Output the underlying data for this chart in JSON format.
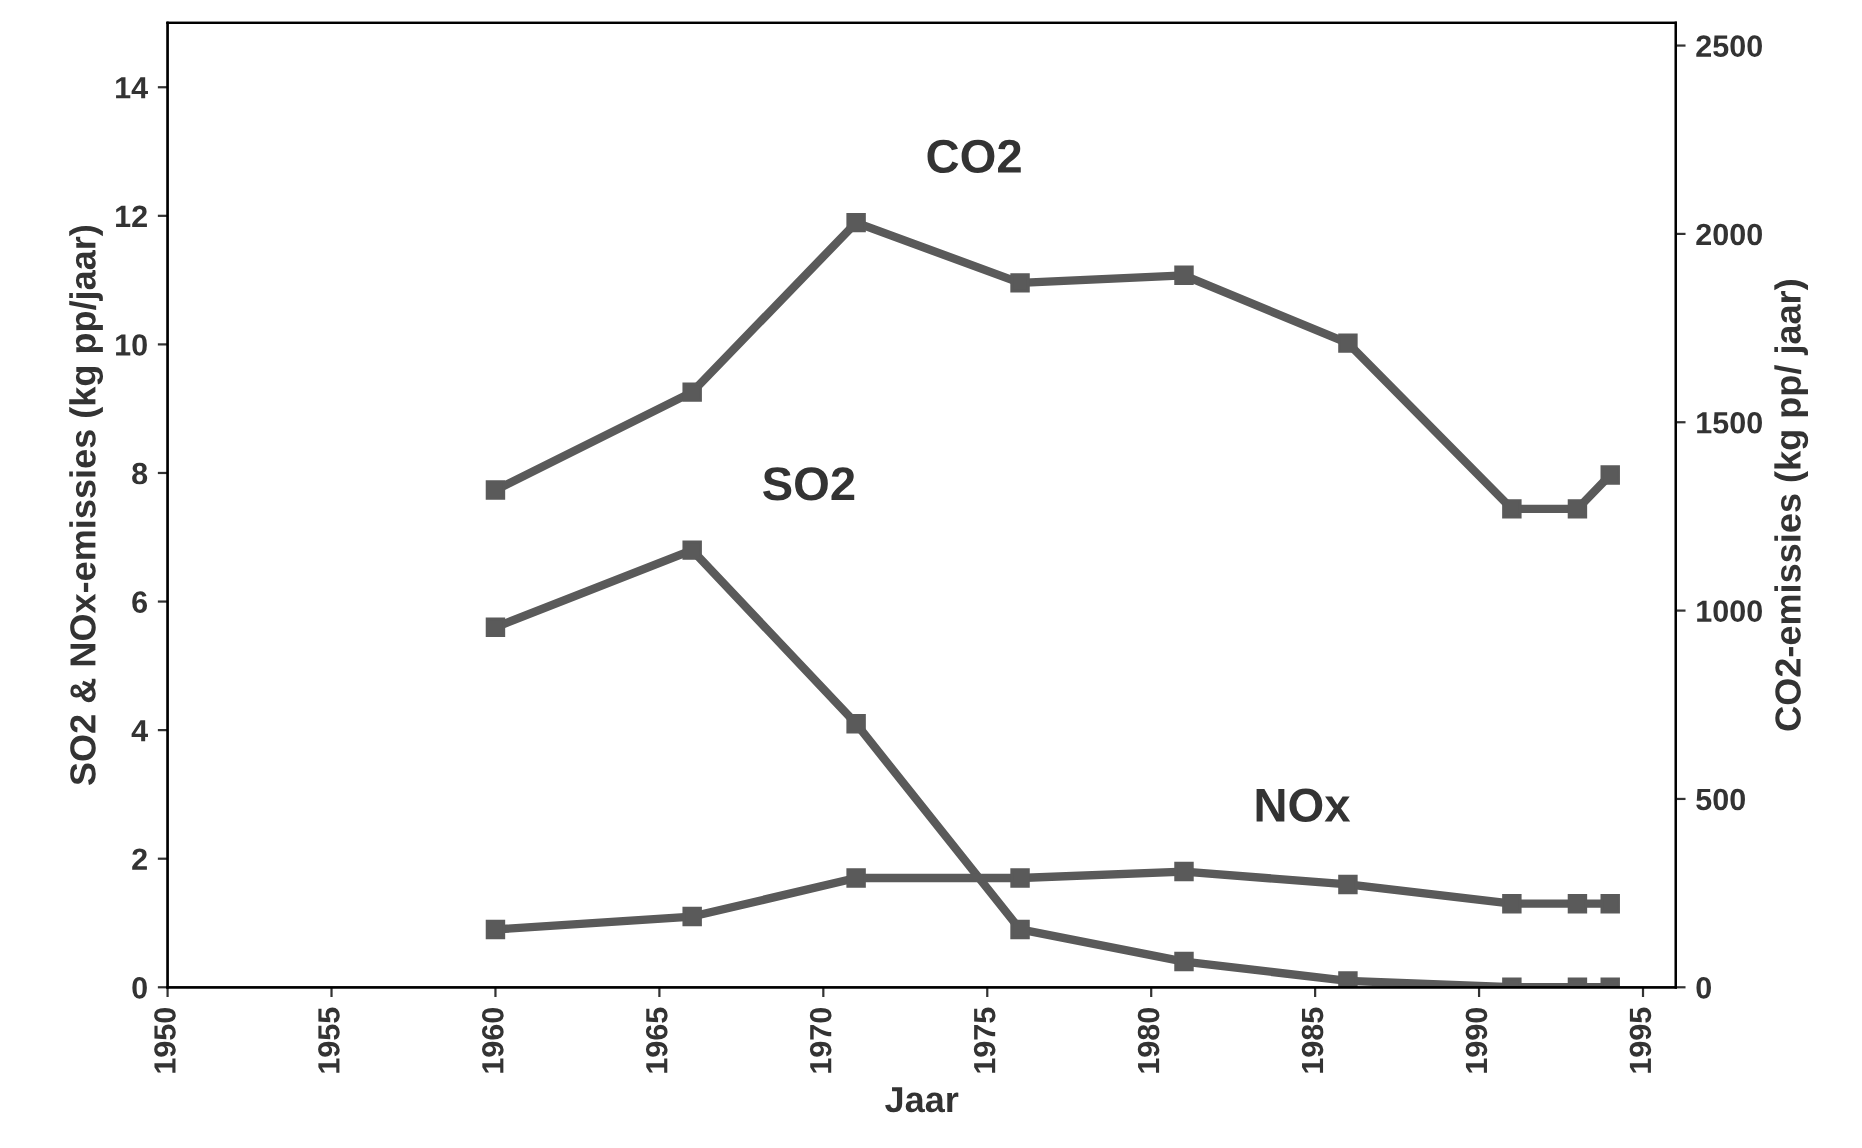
{
  "chart_data": {
    "type": "line",
    "xlabel": "Jaar",
    "ylabel": "SO2 & NOx-emissies (kg pp/jaar)",
    "y2label": "CO2-emissies (kg pp/ jaar)",
    "x": [
      1960,
      1966,
      1971,
      1976,
      1981,
      1986,
      1991,
      1993,
      1994
    ],
    "series": [
      {
        "name": "CO2",
        "color": "#5a5a5a",
        "axis": "y2",
        "values": [
          1320,
          1580,
          2030,
          1870,
          1890,
          1710,
          1270,
          1270,
          1360
        ]
      },
      {
        "name": "SO2",
        "color": "#5a5a5a",
        "values": [
          5.6,
          6.8,
          4.1,
          0.9,
          0.4,
          0.1,
          0,
          0,
          0
        ]
      },
      {
        "name": "NOx",
        "color": "#5a5a5a",
        "values": [
          0.9,
          1.1,
          1.7,
          1.7,
          1.8,
          1.6,
          1.3,
          1.3,
          1.3
        ]
      }
    ],
    "xlim": [
      1950,
      1996
    ],
    "xticks": [
      1950,
      1955,
      1960,
      1965,
      1970,
      1975,
      1980,
      1985,
      1990,
      1995
    ],
    "ylim": [
      0,
      15
    ],
    "yticks": [
      0,
      2,
      4,
      6,
      8,
      10,
      12,
      14
    ],
    "y2lim": [
      0,
      2560
    ],
    "y2ticks": [
      0,
      500,
      1000,
      1500,
      2000,
      2500
    ],
    "marker": "square",
    "line_style": "solid",
    "grid": false,
    "legend": false
  }
}
